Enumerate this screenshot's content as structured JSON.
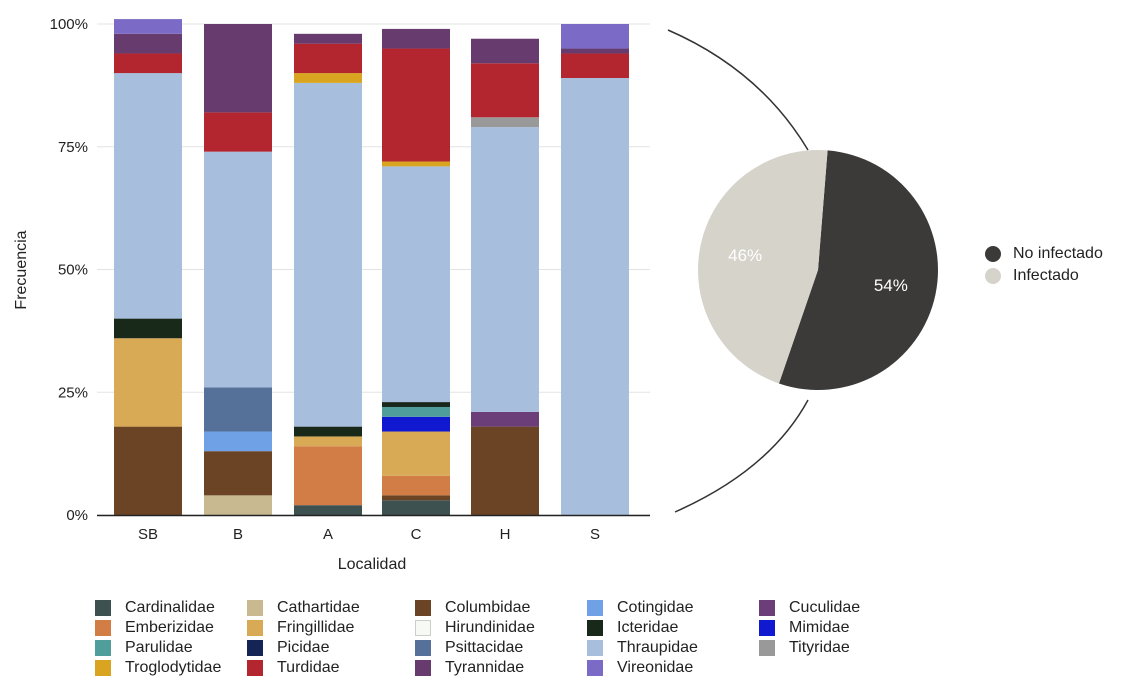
{
  "chart_data": [
    {
      "type": "bar",
      "stacked": true,
      "title": "",
      "xlabel": "Localidad",
      "ylabel": "Frecuencia",
      "ylim": [
        0,
        100
      ],
      "yticks": [
        "0%",
        "25%",
        "50%",
        "75%",
        "100%"
      ],
      "grid": true,
      "legend_position": "bottom",
      "categories": [
        "SB",
        "B",
        "A",
        "C",
        "H",
        "S"
      ],
      "series": [
        {
          "name": "Cardinalidae",
          "color": "#3d5150",
          "values": [
            0,
            0,
            2,
            3,
            0,
            0
          ]
        },
        {
          "name": "Cathartidae",
          "color": "#c8b990",
          "values": [
            0,
            4,
            0,
            0,
            0,
            0
          ]
        },
        {
          "name": "Columbidae",
          "color": "#6b4426",
          "values": [
            18,
            9,
            0,
            1,
            18,
            0
          ]
        },
        {
          "name": "Emberizidae",
          "color": "#d27d46",
          "values": [
            0,
            0,
            12,
            4,
            0,
            0
          ]
        },
        {
          "name": "Fringillidae",
          "color": "#d9aa55",
          "values": [
            18,
            0,
            2,
            9,
            0,
            0
          ]
        },
        {
          "name": "Cotingidae",
          "color": "#6fa1e6",
          "values": [
            0,
            4,
            0,
            0,
            0,
            0
          ]
        },
        {
          "name": "Psittacidae",
          "color": "#55719a",
          "values": [
            0,
            9,
            0,
            0,
            0,
            0
          ]
        },
        {
          "name": "Mimidae",
          "color": "#1018d0",
          "values": [
            0,
            0,
            0,
            3,
            0,
            0
          ]
        },
        {
          "name": "Parulidae",
          "color": "#4f9e9c",
          "values": [
            0,
            0,
            0,
            2,
            0,
            0
          ]
        },
        {
          "name": "Icteridae",
          "color": "#18291a",
          "values": [
            4,
            0,
            2,
            1,
            0,
            0
          ]
        },
        {
          "name": "Cuculidae",
          "color": "#6b3e7a",
          "values": [
            0,
            0,
            0,
            0,
            3,
            0
          ]
        },
        {
          "name": "Hirundinidae",
          "color": "#f6f9f4",
          "values": [
            0,
            0,
            0,
            0,
            0,
            0
          ]
        },
        {
          "name": "Picidae",
          "color": "#142455",
          "values": [
            0,
            0,
            0,
            0,
            0,
            0
          ]
        },
        {
          "name": "Thraupidae",
          "color": "#a7bfdd",
          "values": [
            50,
            48,
            70,
            48,
            58,
            89
          ]
        },
        {
          "name": "Tityridae",
          "color": "#999999",
          "values": [
            0,
            0,
            0,
            0,
            2,
            0
          ]
        },
        {
          "name": "Troglodytidae",
          "color": "#d9a521",
          "values": [
            0,
            0,
            2,
            1,
            0,
            0
          ]
        },
        {
          "name": "Turdidae",
          "color": "#b3262f",
          "values": [
            4,
            8,
            6,
            23,
            11,
            5
          ]
        },
        {
          "name": "Tyrannidae",
          "color": "#673b6e",
          "values": [
            4,
            18,
            2,
            4,
            5,
            1
          ]
        },
        {
          "name": "Vireonidae",
          "color": "#7b6ac6",
          "values": [
            3,
            0,
            0,
            0,
            0,
            5
          ]
        }
      ],
      "legend_order": [
        "Cardinalidae",
        "Cathartidae",
        "Columbidae",
        "Cotingidae",
        "Cuculidae",
        "Emberizidae",
        "Fringillidae",
        "Hirundinidae",
        "Icteridae",
        "Mimidae",
        "Parulidae",
        "Picidae",
        "Psittacidae",
        "Thraupidae",
        "Tityridae",
        "Troglodytidae",
        "Turdidae",
        "Tyrannidae",
        "Vireonidae"
      ]
    },
    {
      "type": "pie",
      "title": "",
      "legend_position": "right",
      "slices": [
        {
          "label": "No infectado",
          "value": 54,
          "display": "54%",
          "color": "#3c3a38"
        },
        {
          "label": "Infectado",
          "value": 46,
          "display": "46%",
          "color": "#d6d3cb"
        }
      ]
    }
  ]
}
